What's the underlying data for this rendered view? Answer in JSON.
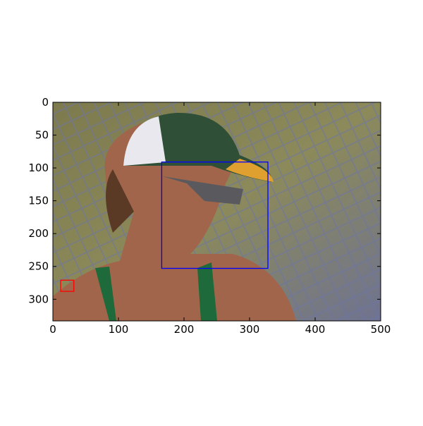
{
  "chart_data": {
    "type": "image",
    "xlim": [
      0,
      500
    ],
    "ylim": [
      333,
      0
    ],
    "xticks": [
      0,
      100,
      200,
      300,
      400,
      500
    ],
    "yticks": [
      0,
      50,
      100,
      150,
      200,
      250,
      300
    ],
    "boxes": [
      {
        "x0": 166,
        "y0": 91,
        "x1": 328,
        "y1": 253,
        "color": "#0000ff"
      },
      {
        "x0": 12,
        "y0": 271,
        "x1": 32,
        "y1": 288,
        "color": "#ff0000"
      }
    ]
  }
}
